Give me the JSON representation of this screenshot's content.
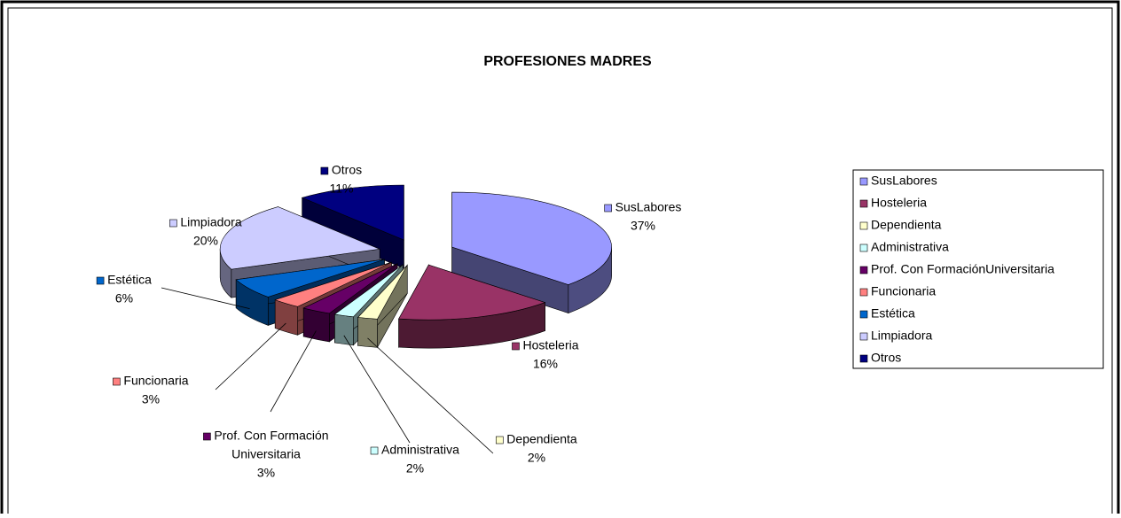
{
  "chart_data": {
    "type": "pie3d",
    "title": "PROFESIONES MADRES",
    "categories": [
      "SusLabores",
      "Hosteleria",
      "Dependienta",
      "Administrativa",
      "Prof. Con FormaciónUniversitaria",
      "Funcionaria",
      "Estética",
      "Limpiadora",
      "Otros"
    ],
    "data_labels": [
      [
        "SusLabores"
      ],
      [
        "Hosteleria"
      ],
      [
        "Dependienta"
      ],
      [
        "Administrativa"
      ],
      [
        "Prof. Con Formación",
        "Universitaria"
      ],
      [
        "Funcionaria"
      ],
      [
        "Estética"
      ],
      [
        "Limpiadora"
      ],
      [
        "Otros"
      ]
    ],
    "values": [
      37,
      16,
      2,
      2,
      3,
      3,
      6,
      20,
      11
    ],
    "value_labels": [
      "37%",
      "16%",
      "2%",
      "2%",
      "3%",
      "3%",
      "6%",
      "20%",
      "11%"
    ],
    "colors": [
      "#9999ff",
      "#993366",
      "#ffffcc",
      "#ccffff",
      "#660066",
      "#ff8080",
      "#0066cc",
      "#ccccff",
      "#000080"
    ],
    "legend": "right"
  }
}
